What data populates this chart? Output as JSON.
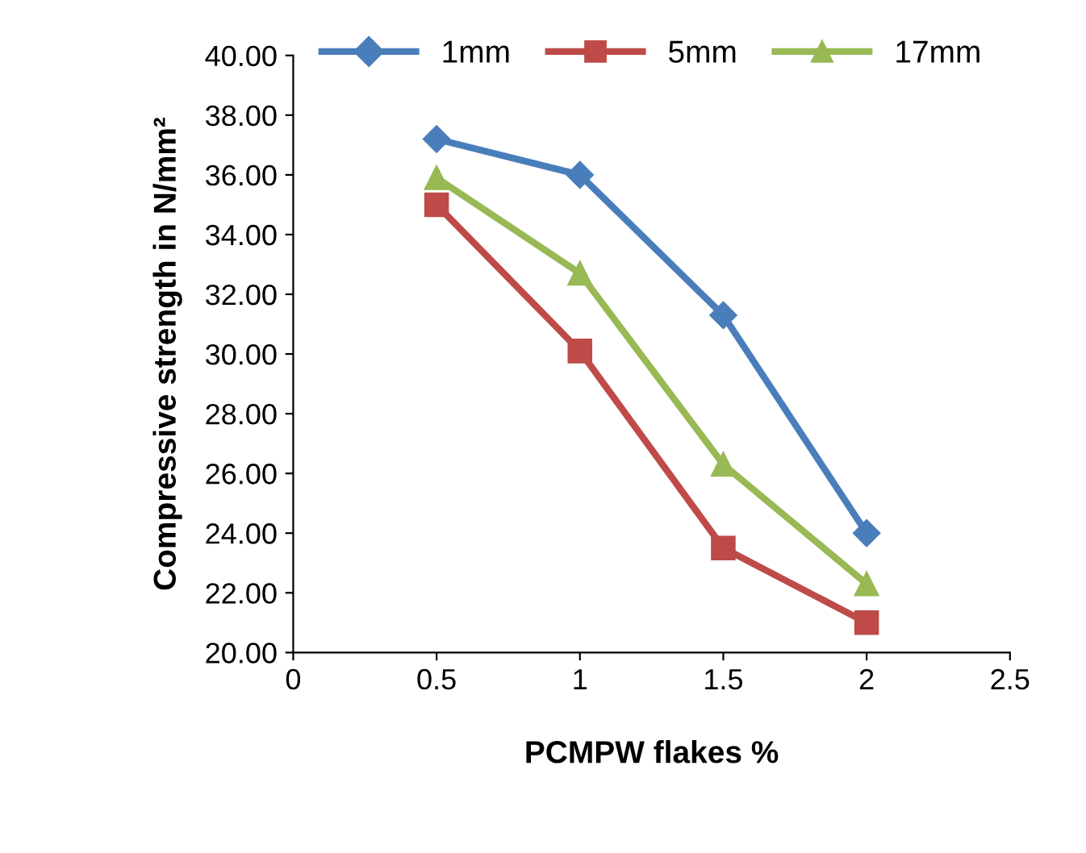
{
  "chart_data": {
    "type": "line",
    "xlabel": "PCMPW flakes %",
    "ylabel": "Compressive strength in N/mm²",
    "x": [
      0.5,
      1,
      1.5,
      2
    ],
    "series": [
      {
        "name": "1mm",
        "color": "#4a7ebb",
        "marker": "diamond",
        "values": [
          37.2,
          36.0,
          31.3,
          24.0
        ]
      },
      {
        "name": "5mm",
        "color": "#be4b48",
        "marker": "square",
        "values": [
          35.0,
          30.1,
          23.5,
          21.0
        ]
      },
      {
        "name": "17mm",
        "color": "#98b954",
        "marker": "triangle",
        "values": [
          35.9,
          32.7,
          26.3,
          22.3
        ]
      }
    ],
    "xlim": [
      0,
      2.5
    ],
    "xticks": [
      0,
      0.5,
      1,
      1.5,
      2,
      2.5
    ],
    "ylim": [
      20,
      40
    ],
    "yticks": [
      {
        "value": 20,
        "label": "20.00"
      },
      {
        "value": 22,
        "label": "22.00"
      },
      {
        "value": 24,
        "label": "24.00"
      },
      {
        "value": 26,
        "label": "26.00"
      },
      {
        "value": 28,
        "label": "28.00"
      },
      {
        "value": 30,
        "label": "30.00"
      },
      {
        "value": 32,
        "label": "32.00"
      },
      {
        "value": 34,
        "label": "34.00"
      },
      {
        "value": 36,
        "label": "36.00"
      },
      {
        "value": 38,
        "label": "38.00"
      },
      {
        "value": 40,
        "label": "40.00"
      }
    ],
    "grid": false,
    "legend": "top",
    "line_style": "solid"
  }
}
